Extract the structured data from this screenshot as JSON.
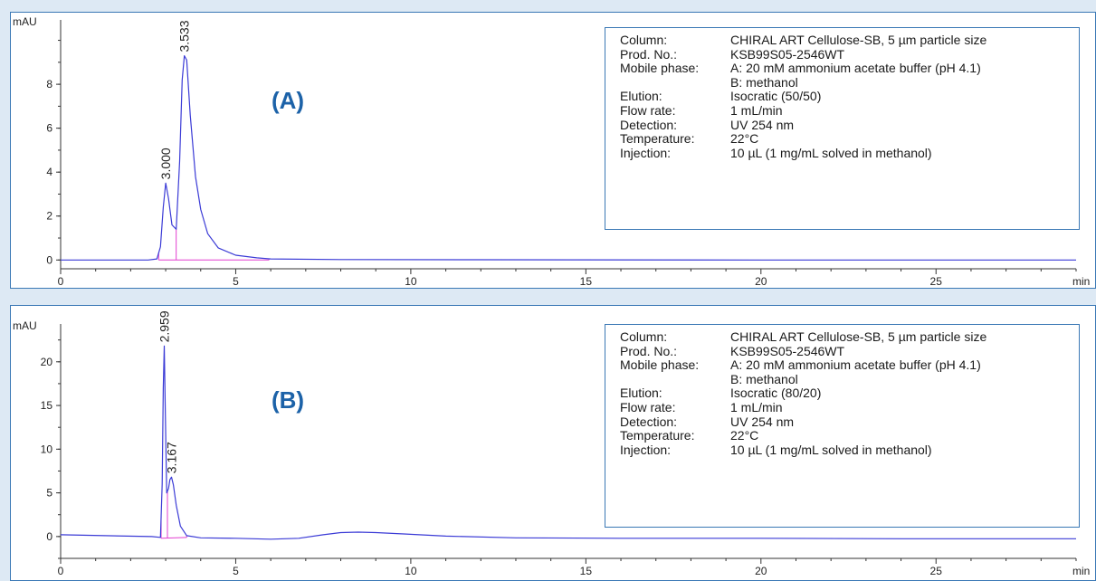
{
  "chart_data": [
    {
      "type": "line",
      "panel_label": "(A)",
      "ylabel": "mAU",
      "xlabel": "min",
      "xlim": [
        0,
        29
      ],
      "ylim": [
        -0.4,
        10.6
      ],
      "x_ticks": [
        0,
        5,
        10,
        15,
        20,
        25
      ],
      "y_ticks": [
        0,
        2,
        4,
        6,
        8
      ],
      "grid": false,
      "trace_color": "#3b3bd6",
      "integration_color": "#e23fd0",
      "peaks": [
        {
          "label": "3.000",
          "rt": 3.0,
          "height": 3.5
        },
        {
          "label": "3.533",
          "rt": 3.533,
          "height": 9.3
        }
      ],
      "series": [
        {
          "x": [
            0,
            2.5,
            2.75,
            2.85,
            2.93,
            3.0,
            3.08,
            3.18,
            3.3,
            3.4,
            3.47,
            3.533,
            3.6,
            3.7,
            3.85,
            4.0,
            4.2,
            4.5,
            5.0,
            5.6,
            6.0,
            8,
            12,
            20,
            29
          ],
          "y": [
            0,
            0,
            0.05,
            0.6,
            2.4,
            3.5,
            2.8,
            1.6,
            1.4,
            4.5,
            8.2,
            9.3,
            9.1,
            6.6,
            3.8,
            2.3,
            1.2,
            0.55,
            0.22,
            0.1,
            0.05,
            0.02,
            0.01,
            0.0,
            0.0
          ]
        }
      ],
      "integration_baseline": {
        "x": [
          2.8,
          5.95
        ],
        "y": [
          0,
          0
        ]
      },
      "integration_drops": [
        2.8,
        3.3,
        5.95
      ],
      "info": {
        "Column:": "CHIRAL ART Cellulose-SB, 5 µm particle size",
        "Prod. No.:": "KSB99S05-2546WT",
        "Mobile phase:": "A: 20 mM ammonium acetate buffer (pH 4.1)",
        "mobile_phase_b": "B: methanol",
        "Elution:": "Isocratic (50/50)",
        "Flow rate:": "1 mL/min",
        "Detection:": "UV 254 nm",
        "Temperature:": "22°C",
        "Injection:": "10 µL (1 mg/mL solved in methanol)"
      }
    },
    {
      "type": "line",
      "panel_label": "(B)",
      "ylabel": "mAU",
      "xlabel": "min",
      "xlim": [
        0,
        29
      ],
      "ylim": [
        -2.5,
        23.5
      ],
      "x_ticks": [
        0,
        5,
        10,
        15,
        20,
        25
      ],
      "y_ticks": [
        0,
        5,
        10,
        15,
        20
      ],
      "grid": false,
      "trace_color": "#3b3bd6",
      "integration_color": "#e23fd0",
      "peaks": [
        {
          "label": "2.959",
          "rt": 2.959,
          "height": 21.8
        },
        {
          "label": "3.167",
          "rt": 3.167,
          "height": 6.8
        }
      ],
      "series": [
        {
          "x": [
            0,
            2.6,
            2.85,
            2.9,
            2.93,
            2.959,
            2.99,
            3.03,
            3.08,
            3.12,
            3.167,
            3.22,
            3.3,
            3.42,
            3.6,
            4.0,
            5.0,
            6.0,
            6.8,
            7.5,
            8.0,
            8.5,
            9.0,
            9.8,
            11,
            13,
            16,
            20,
            24,
            29
          ],
          "y": [
            0.2,
            0.0,
            -0.1,
            6,
            17,
            21.8,
            14,
            5,
            5.5,
            6.5,
            6.8,
            5.9,
            3.6,
            1.2,
            0.1,
            -0.15,
            -0.2,
            -0.3,
            -0.2,
            0.2,
            0.45,
            0.5,
            0.45,
            0.3,
            0.05,
            -0.15,
            -0.2,
            -0.2,
            -0.25,
            -0.25
          ]
        }
      ],
      "integration_baseline": {
        "x": [
          2.87,
          3.6
        ],
        "y": [
          -0.2,
          -0.1
        ]
      },
      "integration_drops": [
        2.87,
        3.05,
        3.6
      ],
      "info": {
        "Column:": "CHIRAL ART Cellulose-SB, 5 µm particle size",
        "Prod. No.:": "KSB99S05-2546WT",
        "Mobile phase:": "A: 20 mM ammonium acetate buffer (pH 4.1)",
        "mobile_phase_b": "B: methanol",
        "Elution:": "Isocratic (80/20)",
        "Flow rate:": "1 mL/min",
        "Detection:": "UV 254 nm",
        "Temperature:": "22°C",
        "Injection:": "10 µL (1 mg/mL solved in methanol)"
      }
    }
  ]
}
